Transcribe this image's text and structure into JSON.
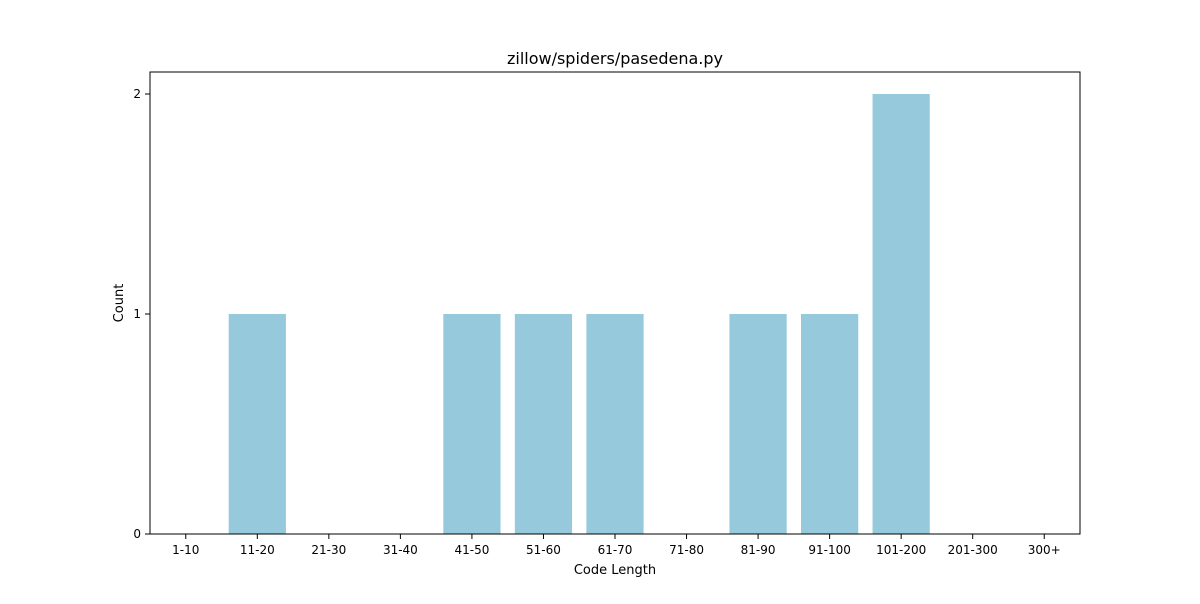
{
  "chart_data": {
    "type": "bar",
    "title": "zillow/spiders/pasedena.py",
    "xlabel": "Code Length",
    "ylabel": "Count",
    "categories": [
      "1-10",
      "11-20",
      "21-30",
      "31-40",
      "41-50",
      "51-60",
      "61-70",
      "71-80",
      "81-90",
      "91-100",
      "101-200",
      "201-300",
      "300+"
    ],
    "values": [
      0,
      1,
      0,
      0,
      1,
      1,
      1,
      0,
      1,
      1,
      2,
      0,
      0
    ],
    "ylim": [
      0,
      2.1
    ],
    "yticks": [
      0,
      1,
      2
    ],
    "grid": false,
    "bar_color": "#96c9dc"
  }
}
